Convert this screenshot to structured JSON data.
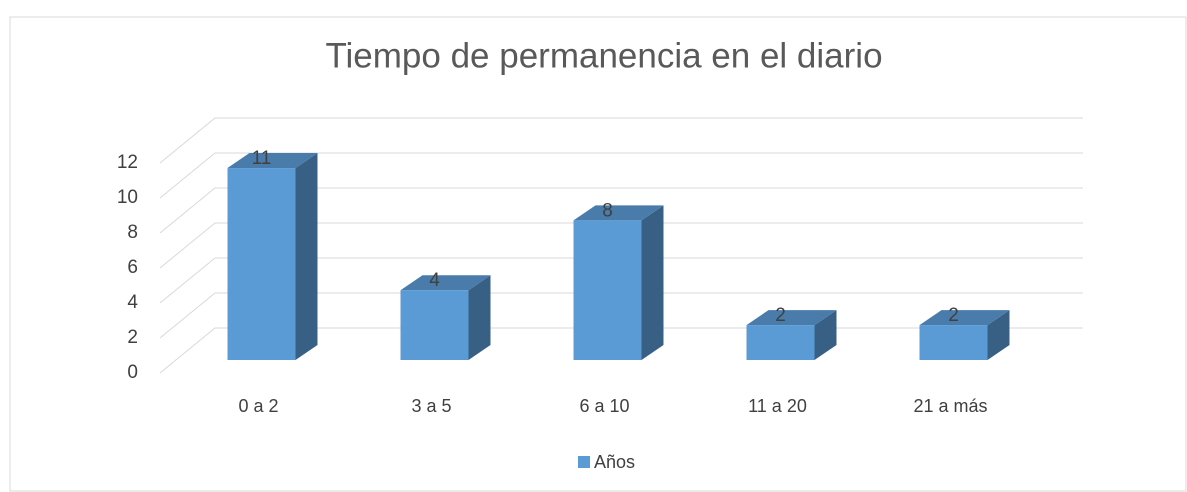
{
  "chart_data": {
    "type": "bar3d",
    "title": "Tiempo de permanencia en el diario",
    "categories": [
      "0 a 2",
      "3 a 5",
      "6 a 10",
      "11 a 20",
      "21 a más"
    ],
    "series": [
      {
        "name": "Años",
        "color": "#5b9bd5",
        "values": [
          11,
          4,
          8,
          2,
          2
        ]
      }
    ],
    "ylim": [
      0,
      12
    ],
    "yticks": [
      0,
      2,
      4,
      6,
      8,
      10,
      12
    ],
    "grid": true,
    "legend": "bottom"
  }
}
